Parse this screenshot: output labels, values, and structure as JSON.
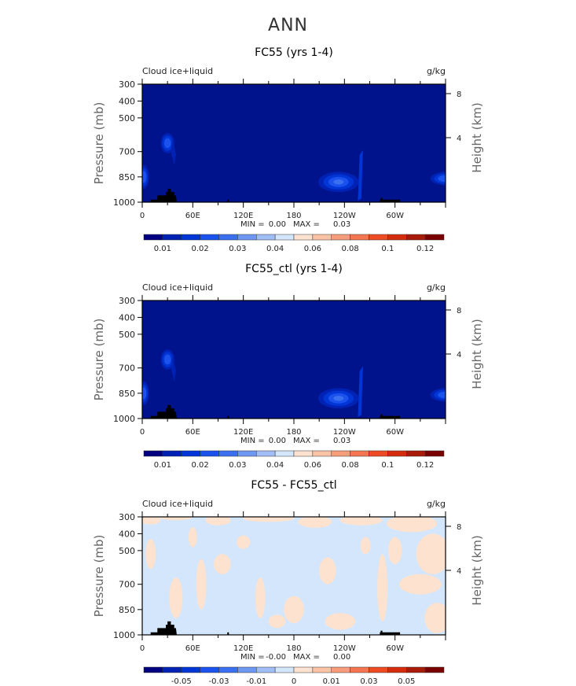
{
  "figure_title": "ANN",
  "colors": {
    "plot_background": "#00138c",
    "land": "#000000",
    "diff_negative": "#d3e6fb",
    "diff_positive": "#fde3cf",
    "palette": [
      "#000080",
      "#0022b4",
      "#0035d6",
      "#1b52ee",
      "#3a70ef",
      "#6e97f1",
      "#a0bdf5",
      "#d3e6fb",
      "#fde3cf",
      "#fbc3a6",
      "#f89d7a",
      "#f4754f",
      "#ee4b25",
      "#d42c0c",
      "#a91a08",
      "#7a0000"
    ]
  },
  "chart_data": [
    {
      "type": "heatmap",
      "title": "FC55 (yrs 1-4)",
      "variable_label": "Cloud ice+liquid",
      "units_label": "g/kg",
      "ylabel": "Pressure (mb)",
      "ylabel_right": "Height (km)",
      "x_ticks": [
        "0",
        "60E",
        "120E",
        "180",
        "120W",
        "60W"
      ],
      "y_ticks": [
        "300",
        "400",
        "500",
        "700",
        "850",
        "1000"
      ],
      "y_ticks_right": [
        "8",
        "4"
      ],
      "ylim": [
        1000,
        300
      ],
      "xlim": [
        0,
        360
      ],
      "min_label": "MIN =",
      "min_value": "0.00",
      "max_label": "MAX =",
      "max_value": "0.03",
      "colorbar_labels": [
        "0.01",
        "0.02",
        "0.03",
        "0.04",
        "0.06",
        "0.08",
        "0.1",
        "0.12"
      ]
    },
    {
      "type": "heatmap",
      "title": "FC55_ctl (yrs 1-4)",
      "variable_label": "Cloud ice+liquid",
      "units_label": "g/kg",
      "ylabel": "Pressure (mb)",
      "ylabel_right": "Height (km)",
      "x_ticks": [
        "0",
        "60E",
        "120E",
        "180",
        "120W",
        "60W"
      ],
      "y_ticks": [
        "300",
        "400",
        "500",
        "700",
        "850",
        "1000"
      ],
      "y_ticks_right": [
        "8",
        "4"
      ],
      "ylim": [
        1000,
        300
      ],
      "xlim": [
        0,
        360
      ],
      "min_label": "MIN =",
      "min_value": "0.00",
      "max_label": "MAX =",
      "max_value": "0.03",
      "colorbar_labels": [
        "0.01",
        "0.02",
        "0.03",
        "0.04",
        "0.06",
        "0.08",
        "0.1",
        "0.12"
      ]
    },
    {
      "type": "heatmap",
      "title": "FC55 - FC55_ctl",
      "variable_label": "Cloud ice+liquid",
      "units_label": "g/kg",
      "ylabel": "Pressure (mb)",
      "ylabel_right": "Height (km)",
      "x_ticks": [
        "0",
        "60E",
        "120E",
        "180",
        "120W",
        "60W"
      ],
      "y_ticks": [
        "300",
        "400",
        "500",
        "700",
        "850",
        "1000"
      ],
      "y_ticks_right": [
        "8",
        "4"
      ],
      "ylim": [
        1000,
        300
      ],
      "xlim": [
        0,
        360
      ],
      "min_label": "MIN =",
      "min_value": "-0.00",
      "max_label": "MAX =",
      "max_value": "0.00",
      "colorbar_labels": [
        "-0.05",
        "-0.03",
        "-0.01",
        "0",
        "0.01",
        "0.03",
        "0.05"
      ]
    }
  ]
}
